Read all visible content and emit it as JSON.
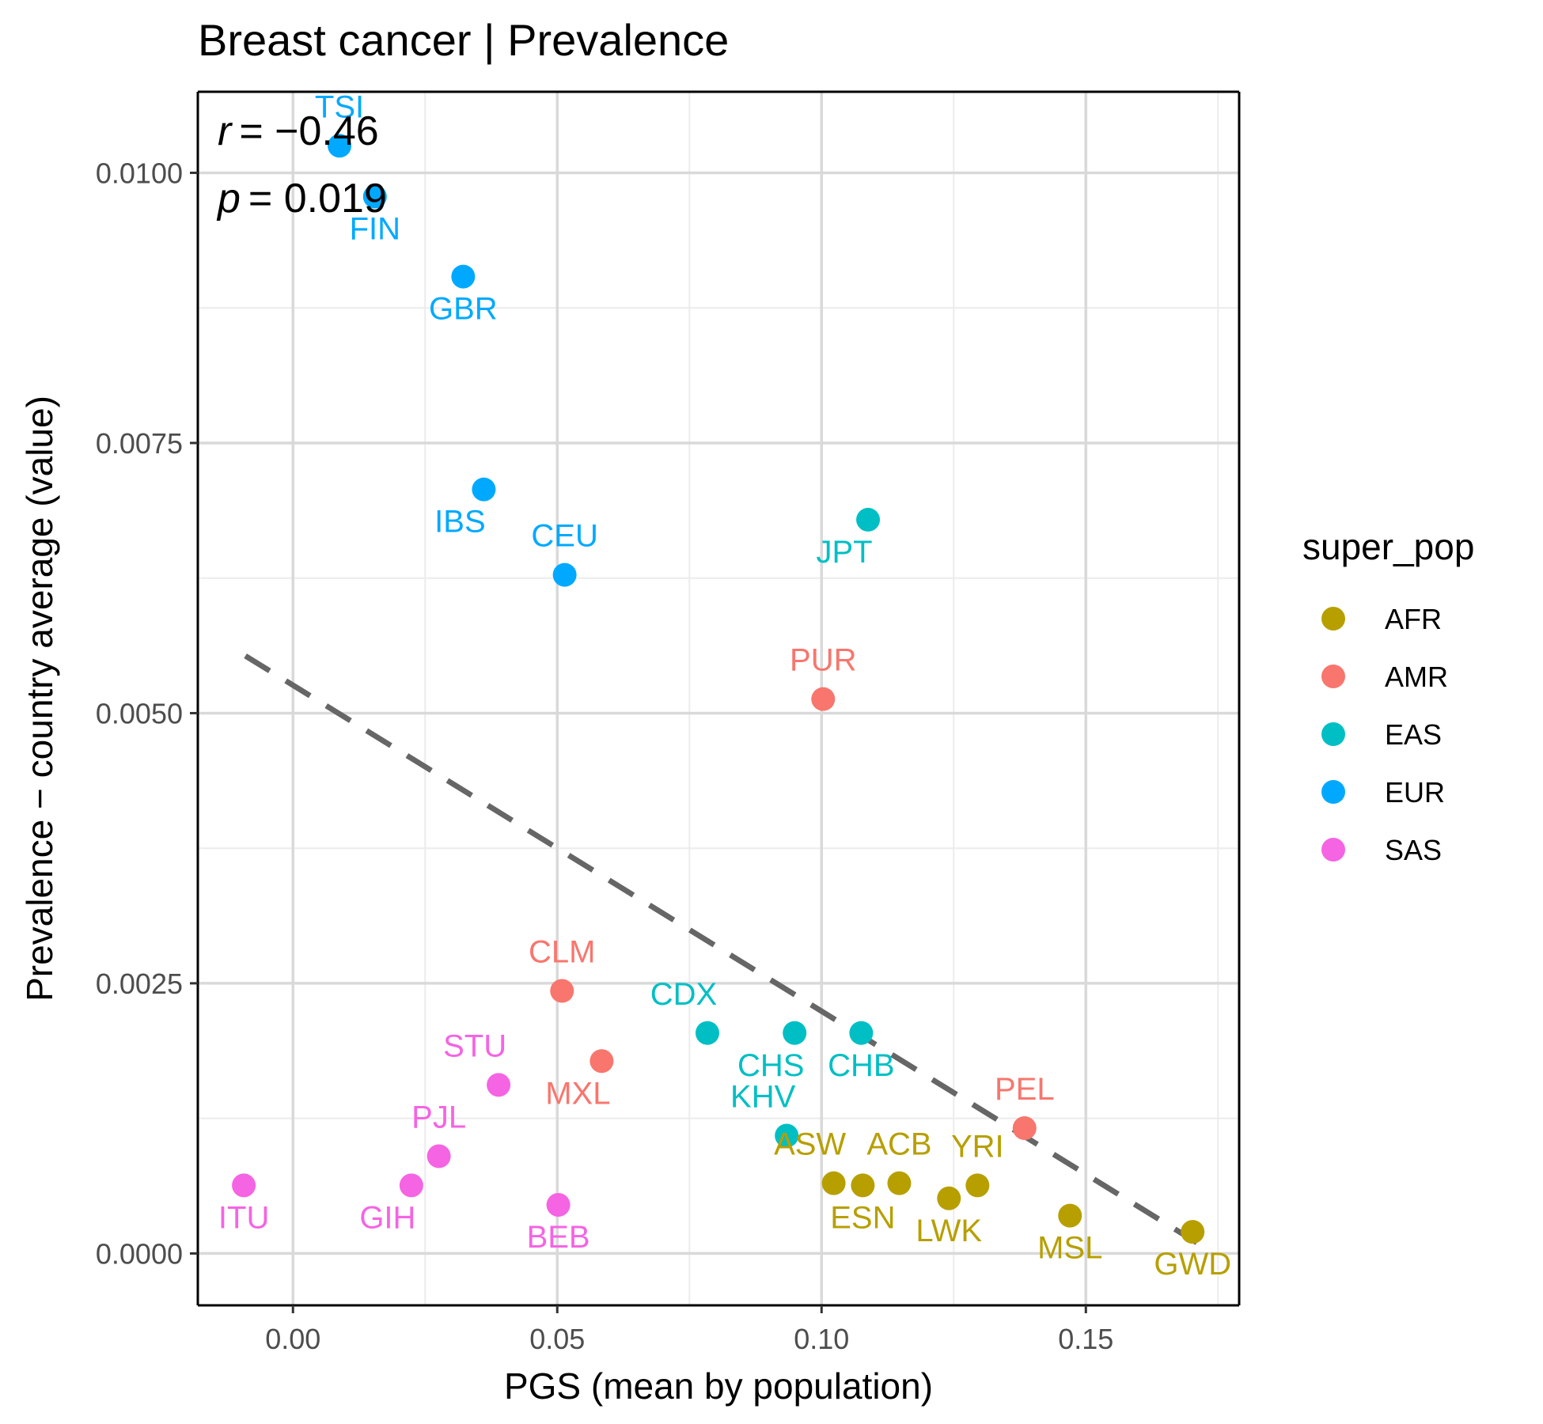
{
  "chart_data": {
    "type": "scatter",
    "title": "Breast cancer | Prevalence",
    "xlabel": "PGS (mean by population)",
    "ylabel": "Prevalence − country average (value)",
    "xlim": [
      -0.018,
      0.179
    ],
    "ylim": [
      -0.00048,
      0.01075
    ],
    "x_ticks": [
      0.0,
      0.05,
      0.1,
      0.15
    ],
    "x_tick_labels": [
      "0.00",
      "0.05",
      "0.10",
      "0.15"
    ],
    "y_ticks": [
      0.0,
      0.0025,
      0.005,
      0.0075,
      0.01
    ],
    "y_tick_labels": [
      "0.0000",
      "0.0025",
      "0.0050",
      "0.0075",
      "0.0100"
    ],
    "grid": true,
    "stats": {
      "r_label": "r",
      "r_value": "= −0.46",
      "p_label": "p",
      "p_value": "= 0.019"
    },
    "trend_line": {
      "style": "dashed",
      "color": "#666666",
      "x": [
        -0.009,
        0.171
      ],
      "y": [
        0.00553,
        0.0001
      ]
    },
    "legend": {
      "title": "super_pop",
      "placement": "right",
      "entries": [
        {
          "label": "AFR",
          "color": "#B79F00"
        },
        {
          "label": "AMR",
          "color": "#F8766D"
        },
        {
          "label": "EAS",
          "color": "#00BFC4"
        },
        {
          "label": "EUR",
          "color": "#00A9FF"
        },
        {
          "label": "SAS",
          "color": "#F564E3"
        }
      ]
    },
    "points": [
      {
        "label": "TSI",
        "super_pop": "EUR",
        "x": 0.0088,
        "y": 0.01025,
        "label_pos": "above"
      },
      {
        "label": "FIN",
        "super_pop": "EUR",
        "x": 0.0155,
        "y": 0.00978,
        "label_pos": "below"
      },
      {
        "label": "GBR",
        "super_pop": "EUR",
        "x": 0.0322,
        "y": 0.00904,
        "label_pos": "below"
      },
      {
        "label": "IBS",
        "super_pop": "EUR",
        "x": 0.0361,
        "y": 0.00707,
        "label_pos": "below-left"
      },
      {
        "label": "CEU",
        "super_pop": "EUR",
        "x": 0.0514,
        "y": 0.00628,
        "label_pos": "above"
      },
      {
        "label": "JPT",
        "super_pop": "EAS",
        "x": 0.1088,
        "y": 0.00679,
        "label_pos": "below-left"
      },
      {
        "label": "PUR",
        "super_pop": "AMR",
        "x": 0.1003,
        "y": 0.00513,
        "label_pos": "above"
      },
      {
        "label": "CLM",
        "super_pop": "AMR",
        "x": 0.0509,
        "y": 0.00243,
        "label_pos": "above"
      },
      {
        "label": "MXL",
        "super_pop": "AMR",
        "x": 0.0584,
        "y": 0.00178,
        "label_pos": "below-left"
      },
      {
        "label": "CDX",
        "super_pop": "EAS",
        "x": 0.0784,
        "y": 0.00204,
        "label_pos": "above-left"
      },
      {
        "label": "CHS",
        "super_pop": "EAS",
        "x": 0.0949,
        "y": 0.00204,
        "label_pos": "below-left"
      },
      {
        "label": "CHB",
        "super_pop": "EAS",
        "x": 0.1075,
        "y": 0.00204,
        "label_pos": "below"
      },
      {
        "label": "KHV",
        "super_pop": "EAS",
        "x": 0.0934,
        "y": 0.00109,
        "label_pos": "above-left"
      },
      {
        "label": "PEL",
        "super_pop": "AMR",
        "x": 0.1384,
        "y": 0.00116,
        "label_pos": "above"
      },
      {
        "label": "STU",
        "super_pop": "SAS",
        "x": 0.0389,
        "y": 0.00156,
        "label_pos": "above-left"
      },
      {
        "label": "PJL",
        "super_pop": "SAS",
        "x": 0.0276,
        "y": 0.0009,
        "label_pos": "above"
      },
      {
        "label": "GIH",
        "super_pop": "SAS",
        "x": 0.0224,
        "y": 0.00063,
        "label_pos": "below-left"
      },
      {
        "label": "ITU",
        "super_pop": "SAS",
        "x": -0.0093,
        "y": 0.00063,
        "label_pos": "below"
      },
      {
        "label": "BEB",
        "super_pop": "SAS",
        "x": 0.0502,
        "y": 0.00045,
        "label_pos": "below"
      },
      {
        "label": "ASW",
        "super_pop": "AFR",
        "x": 0.1023,
        "y": 0.00065,
        "label_pos": "above-left"
      },
      {
        "label": "ESN",
        "super_pop": "AFR",
        "x": 0.1078,
        "y": 0.00063,
        "label_pos": "below"
      },
      {
        "label": "ACB",
        "super_pop": "AFR",
        "x": 0.1147,
        "y": 0.00065,
        "label_pos": "above"
      },
      {
        "label": "LWK",
        "super_pop": "AFR",
        "x": 0.1241,
        "y": 0.00051,
        "label_pos": "below"
      },
      {
        "label": "YRI",
        "super_pop": "AFR",
        "x": 0.1295,
        "y": 0.00063,
        "label_pos": "above"
      },
      {
        "label": "MSL",
        "super_pop": "AFR",
        "x": 0.147,
        "y": 0.00035,
        "label_pos": "below"
      },
      {
        "label": "GWD",
        "super_pop": "AFR",
        "x": 0.1702,
        "y": 0.0002,
        "label_pos": "below"
      }
    ]
  }
}
